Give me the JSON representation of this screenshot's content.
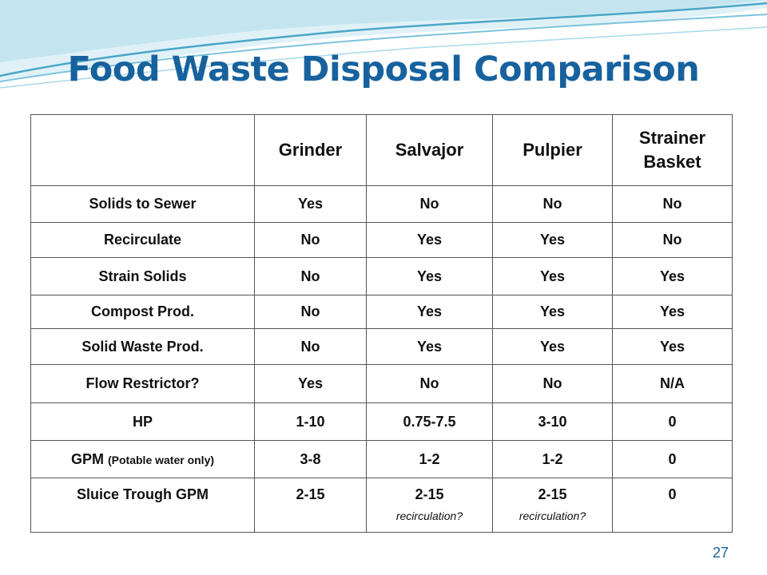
{
  "slide": {
    "title": "Food Waste Disposal Comparison",
    "page_number": "27"
  },
  "table": {
    "columns": [
      "",
      "Grinder",
      "Salvajor",
      "Pulpier",
      "Strainer Basket"
    ],
    "rows": [
      {
        "label": "Solids to Sewer",
        "cells": [
          "Yes",
          "No",
          "No",
          "No"
        ]
      },
      {
        "label": "Recirculate",
        "cells": [
          "No",
          "Yes",
          "Yes",
          "No"
        ]
      },
      {
        "label": "Strain Solids",
        "cells": [
          "No",
          "Yes",
          "Yes",
          "Yes"
        ]
      },
      {
        "label": "Compost Prod.",
        "cells": [
          "No",
          "Yes",
          "Yes",
          "Yes"
        ]
      },
      {
        "label": "Solid Waste Prod.",
        "cells": [
          "No",
          "Yes",
          "Yes",
          "Yes"
        ]
      },
      {
        "label": "Flow Restrictor?",
        "cells": [
          "Yes",
          "No",
          "No",
          "N/A"
        ]
      },
      {
        "label": "HP",
        "cells": [
          "1-10",
          "0.75-7.5",
          "3-10",
          "0"
        ]
      },
      {
        "label": "GPM",
        "label_note": "(Potable water only)",
        "cells": [
          "3-8",
          "1-2",
          "1-2",
          "0"
        ]
      },
      {
        "label": "Sluice Trough GPM",
        "cells": [
          "2-15",
          "2-15",
          "2-15",
          "0"
        ],
        "notes": [
          "",
          "recirculation?",
          "recirculation?",
          ""
        ]
      }
    ]
  },
  "colors": {
    "title": "#17629e",
    "wave_dark": "#4aa6c8",
    "wave_light": "#bfe3ef"
  }
}
